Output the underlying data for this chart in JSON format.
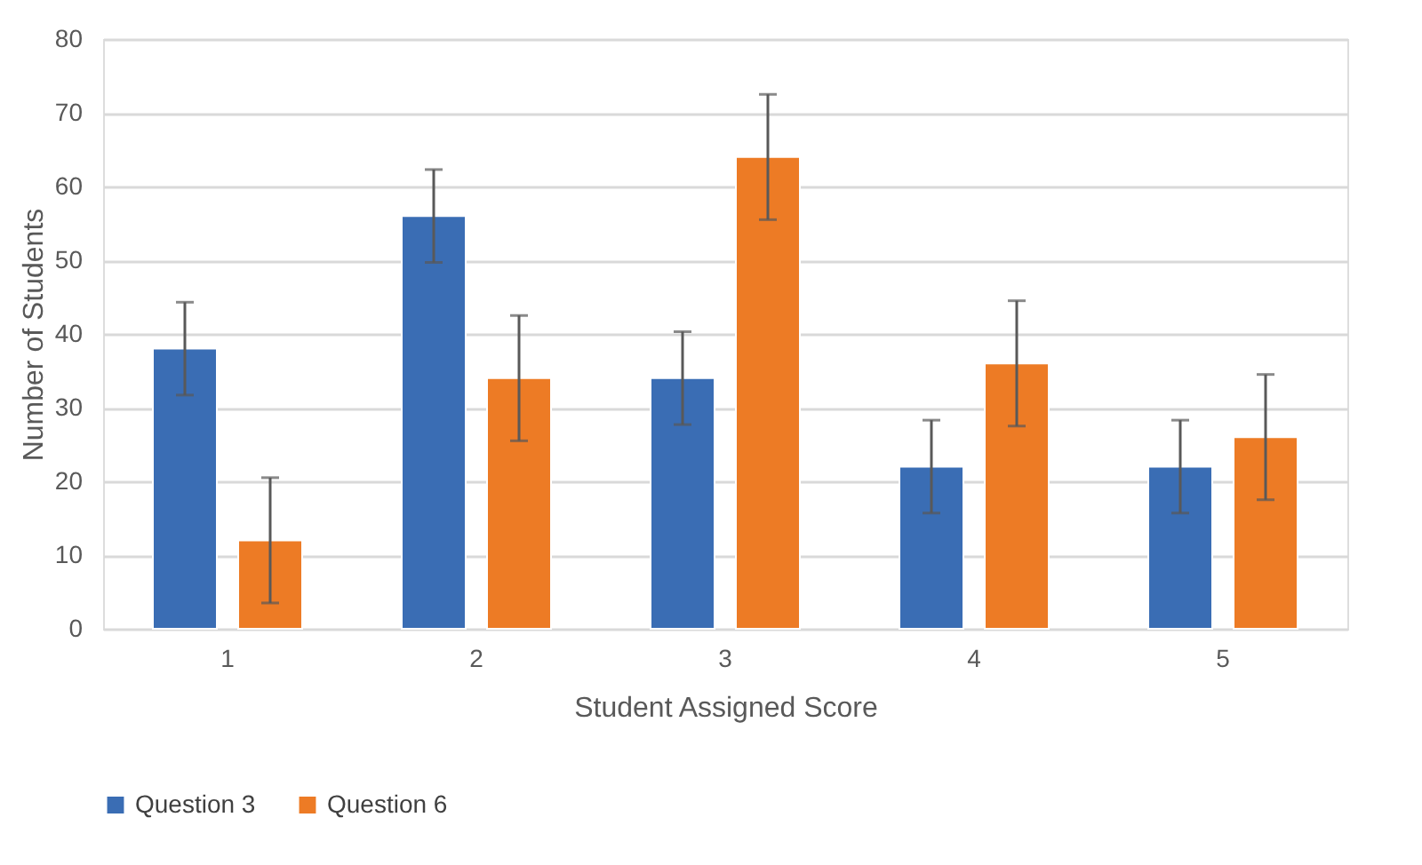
{
  "chart_data": {
    "type": "bar",
    "xlabel": "Student Assigned Score",
    "ylabel": "Number of Students",
    "categories": [
      "1",
      "2",
      "3",
      "4",
      "5"
    ],
    "series": [
      {
        "name": "Question 3",
        "color": "#3a6db4",
        "values": [
          38,
          56,
          34,
          22,
          22
        ],
        "errors": [
          6.3,
          6.3,
          6.3,
          6.3,
          6.3
        ]
      },
      {
        "name": "Question 6",
        "color": "#ed7b25",
        "values": [
          12,
          34,
          64,
          36,
          26
        ],
        "errors": [
          8.5,
          8.5,
          8.5,
          8.5,
          8.5
        ]
      }
    ],
    "ylim": [
      0,
      80
    ],
    "yticks": [
      0,
      10,
      20,
      30,
      40,
      50,
      60,
      70,
      80
    ],
    "grid": "y",
    "legend": "bottom"
  }
}
